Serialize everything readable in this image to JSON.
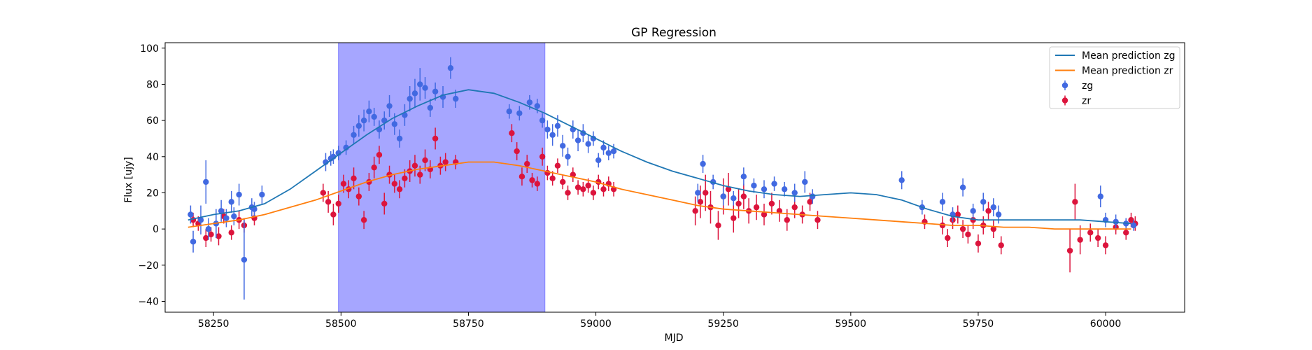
{
  "chart_data": {
    "type": "scatter",
    "title": "GP Regression",
    "xlabel": "MJD",
    "ylabel": "Flux [ujy]",
    "xlim": [
      58155,
      60155
    ],
    "ylim": [
      -46,
      103
    ],
    "xticks": [
      58250,
      58500,
      58750,
      59000,
      59250,
      59500,
      59750,
      60000
    ],
    "yticks": [
      -40,
      -20,
      0,
      20,
      40,
      60,
      80,
      100
    ],
    "grid": false,
    "legend_position": "top-right",
    "shaded_region": {
      "x0": 58495,
      "x1": 58900,
      "color": "#a6a6ff"
    },
    "lines": [
      {
        "name": "Mean prediction zg",
        "color": "#1f77b4",
        "x": [
          58200,
          58250,
          58300,
          58350,
          58400,
          58450,
          58500,
          58550,
          58600,
          58650,
          58700,
          58750,
          58800,
          58850,
          58900,
          58950,
          59000,
          59050,
          59100,
          59150,
          59200,
          59250,
          59300,
          59350,
          59400,
          59450,
          59500,
          59550,
          59600,
          59650,
          59700,
          59750,
          59800,
          59850,
          59900,
          59950,
          60000,
          60050
        ],
        "y": [
          5,
          8,
          10,
          14,
          22,
          32,
          42,
          52,
          61,
          68,
          74,
          77,
          75,
          70,
          64,
          57,
          50,
          43,
          37,
          32,
          28,
          24,
          21,
          19,
          18,
          19,
          20,
          19,
          16,
          11,
          7,
          5,
          5,
          5,
          5,
          5,
          4,
          3
        ]
      },
      {
        "name": "Mean prediction zr",
        "color": "#ff7f0e",
        "x": [
          58200,
          58250,
          58300,
          58350,
          58400,
          58450,
          58500,
          58550,
          58600,
          58650,
          58700,
          58750,
          58800,
          58850,
          58900,
          58950,
          59000,
          59050,
          59100,
          59150,
          59200,
          59250,
          59300,
          59350,
          59400,
          59450,
          59500,
          59550,
          59600,
          59650,
          59700,
          59750,
          59800,
          59850,
          59900,
          59950,
          60000,
          60050
        ],
        "y": [
          1,
          3,
          5,
          8,
          12,
          16,
          21,
          26,
          30,
          33,
          35,
          37,
          37,
          35,
          32,
          29,
          26,
          22,
          19,
          16,
          13,
          11,
          10,
          9,
          8,
          7,
          6,
          5,
          4,
          3,
          2,
          2,
          1,
          1,
          0,
          0,
          0,
          0
        ]
      }
    ],
    "series": [
      {
        "name": "zg",
        "color": "#4169e1",
        "x": [
          58205,
          58210,
          58225,
          58235,
          58240,
          58255,
          58265,
          58275,
          58285,
          58290,
          58300,
          58310,
          58325,
          58330,
          58345,
          58470,
          58480,
          58485,
          58495,
          58510,
          58525,
          58535,
          58545,
          58555,
          58565,
          58575,
          58585,
          58595,
          58605,
          58615,
          58625,
          58635,
          58645,
          58655,
          58665,
          58675,
          58685,
          58700,
          58715,
          58725,
          58830,
          58850,
          58870,
          58885,
          58895,
          58905,
          58915,
          58925,
          58935,
          58945,
          58955,
          58965,
          58975,
          58985,
          58995,
          59005,
          59015,
          59025,
          59035,
          59200,
          59210,
          59230,
          59250,
          59270,
          59290,
          59310,
          59330,
          59350,
          59370,
          59390,
          59410,
          59425,
          59600,
          59640,
          59680,
          59700,
          59720,
          59740,
          59760,
          59780,
          59790,
          59990,
          60000,
          60020,
          60040,
          60055
        ],
        "y": [
          8,
          -7,
          5,
          26,
          0,
          3,
          10,
          6,
          15,
          7,
          19,
          -17,
          12,
          11,
          19,
          37,
          39,
          40,
          42,
          45,
          52,
          57,
          60,
          65,
          62,
          55,
          60,
          68,
          58,
          50,
          63,
          72,
          75,
          80,
          78,
          67,
          76,
          73,
          89,
          72,
          65,
          64,
          70,
          68,
          60,
          55,
          52,
          57,
          46,
          40,
          55,
          49,
          53,
          47,
          50,
          38,
          45,
          42,
          43,
          20,
          36,
          26,
          18,
          17,
          29,
          24,
          22,
          25,
          22,
          20,
          26,
          18,
          27,
          12,
          15,
          8,
          23,
          10,
          15,
          12,
          8,
          18,
          5,
          4,
          3,
          2
        ],
        "err": [
          5,
          6,
          8,
          12,
          6,
          8,
          6,
          5,
          6,
          5,
          6,
          22,
          5,
          4,
          5,
          5,
          4,
          4,
          4,
          4,
          5,
          6,
          6,
          6,
          5,
          5,
          5,
          6,
          6,
          5,
          6,
          7,
          8,
          9,
          6,
          5,
          5,
          6,
          6,
          5,
          4,
          4,
          4,
          4,
          4,
          5,
          6,
          6,
          6,
          5,
          5,
          6,
          5,
          5,
          4,
          4,
          4,
          4,
          4,
          5,
          5,
          4,
          5,
          4,
          5,
          4,
          5,
          4,
          4,
          5,
          6,
          4,
          5,
          4,
          5,
          4,
          5,
          4,
          5,
          5,
          5,
          6,
          4,
          4,
          3,
          3
        ]
      },
      {
        "name": "zr",
        "color": "#dc143c",
        "x": [
          58210,
          58220,
          58235,
          58245,
          58260,
          58270,
          58285,
          58300,
          58310,
          58330,
          58465,
          58475,
          58485,
          58495,
          58505,
          58515,
          58525,
          58535,
          58545,
          58555,
          58565,
          58575,
          58585,
          58595,
          58605,
          58615,
          58625,
          58635,
          58645,
          58655,
          58665,
          58675,
          58685,
          58695,
          58705,
          58725,
          58835,
          58845,
          58855,
          58865,
          58875,
          58885,
          58895,
          58905,
          58915,
          58925,
          58935,
          58945,
          58955,
          58965,
          58975,
          58985,
          58995,
          59005,
          59015,
          59025,
          59035,
          59195,
          59205,
          59215,
          59225,
          59240,
          59250,
          59260,
          59270,
          59280,
          59290,
          59300,
          59315,
          59330,
          59345,
          59360,
          59375,
          59390,
          59405,
          59420,
          59435,
          59645,
          59680,
          59690,
          59700,
          59710,
          59720,
          59730,
          59740,
          59750,
          59760,
          59770,
          59780,
          59795,
          59930,
          59940,
          59950,
          59970,
          59985,
          60000,
          60020,
          60040,
          60050,
          60058
        ],
        "y": [
          5,
          3,
          -5,
          -3,
          -4,
          7,
          -2,
          5,
          2,
          6,
          20,
          15,
          8,
          14,
          25,
          22,
          28,
          18,
          5,
          26,
          34,
          41,
          14,
          30,
          25,
          22,
          28,
          32,
          35,
          30,
          38,
          33,
          50,
          35,
          37,
          37,
          53,
          43,
          29,
          36,
          27,
          25,
          40,
          31,
          28,
          35,
          26,
          20,
          30,
          23,
          22,
          24,
          20,
          26,
          22,
          25,
          22,
          10,
          15,
          20,
          12,
          2,
          18,
          22,
          6,
          14,
          18,
          10,
          12,
          8,
          14,
          10,
          5,
          12,
          8,
          15,
          5,
          4,
          2,
          -5,
          5,
          8,
          0,
          -3,
          5,
          -8,
          2,
          10,
          0,
          -9,
          -12,
          15,
          -6,
          -2,
          -5,
          -9,
          1,
          -2,
          5,
          3
        ],
        "err": [
          4,
          4,
          5,
          4,
          5,
          4,
          4,
          5,
          4,
          4,
          5,
          6,
          6,
          5,
          5,
          5,
          6,
          5,
          5,
          5,
          6,
          5,
          6,
          5,
          5,
          5,
          5,
          6,
          6,
          5,
          6,
          5,
          6,
          5,
          5,
          4,
          5,
          5,
          5,
          5,
          4,
          4,
          5,
          4,
          4,
          4,
          4,
          4,
          4,
          4,
          4,
          4,
          4,
          4,
          4,
          4,
          4,
          8,
          9,
          10,
          9,
          8,
          10,
          9,
          8,
          8,
          7,
          7,
          7,
          6,
          6,
          6,
          6,
          6,
          5,
          5,
          5,
          4,
          5,
          5,
          5,
          5,
          5,
          5,
          5,
          5,
          5,
          5,
          5,
          5,
          12,
          10,
          8,
          5,
          5,
          5,
          4,
          4,
          4,
          4
        ]
      }
    ]
  }
}
